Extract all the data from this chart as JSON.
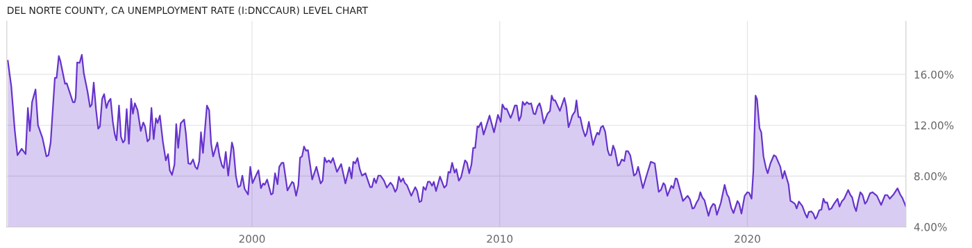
{
  "chart_data": {
    "type": "area",
    "title": "DEL NORTE COUNTY, CA UNEMPLOYMENT RATE (I:DNCCAUR) LEVEL CHART",
    "xlim": [
      1990.1,
      2026.4
    ],
    "xticks": [
      2000,
      2010,
      2020
    ],
    "ylim": [
      4,
      20.2
    ],
    "yticks": [
      {
        "value": 4,
        "label": "4.00%"
      },
      {
        "value": 8,
        "label": "8.00%"
      },
      {
        "value": 12,
        "label": "12.00%"
      },
      {
        "value": 16,
        "label": "16.00%"
      }
    ],
    "grid": true,
    "legend": false,
    "marker": "none",
    "line_style": "solid",
    "series": [
      {
        "color": "#6633cc",
        "x": [
          1990.14,
          1990.28,
          1990.42,
          1990.53,
          1990.7,
          1990.86,
          1990.95,
          1991.03,
          1991.12,
          1991.26,
          1991.36,
          1991.54,
          1991.7,
          1991.78,
          1991.87,
          1992.04,
          1992.11,
          1992.2,
          1992.26,
          1992.45,
          1992.52,
          1992.77,
          1992.84,
          1992.88,
          1992.94,
          1993.04,
          1993.13,
          1993.21,
          1993.36,
          1993.46,
          1993.53,
          1993.61,
          1993.7,
          1993.79,
          1993.86,
          1993.95,
          1994.03,
          1994.12,
          1994.2,
          1994.29,
          1994.38,
          1994.46,
          1994.53,
          1994.63,
          1994.71,
          1994.79,
          1994.86,
          1994.94,
          1995.03,
          1995.12,
          1995.19,
          1995.27,
          1995.38,
          1995.51,
          1995.61,
          1995.68,
          1995.78,
          1995.86,
          1995.94,
          1996.03,
          1996.12,
          1996.19,
          1996.28,
          1996.4,
          1996.52,
          1996.61,
          1996.68,
          1996.77,
          1996.87,
          1996.94,
          1997.02,
          1997.12,
          1997.26,
          1997.33,
          1997.43,
          1997.52,
          1997.62,
          1997.71,
          1997.79,
          1997.87,
          1997.94,
          1998.02,
          1998.18,
          1998.27,
          1998.35,
          1998.43,
          1998.6,
          1998.69,
          1998.79,
          1998.86,
          1998.94,
          1999.04,
          1999.19,
          1999.25,
          1999.35,
          1999.44,
          1999.53,
          1999.61,
          1999.7,
          1999.84,
          1999.93,
          2000.02,
          2000.17,
          2000.26,
          2000.36,
          2000.45,
          2000.51,
          2000.61,
          2000.77,
          2000.84,
          2000.93,
          2001.03,
          2001.1,
          2001.2,
          2001.27,
          2001.43,
          2001.62,
          2001.68,
          2001.78,
          2001.87,
          2001.94,
          2002.02,
          2002.1,
          2002.18,
          2002.26,
          2002.43,
          2002.6,
          2002.77,
          2002.85,
          2002.93,
          2003.01,
          2003.1,
          2003.18,
          2003.27,
          2003.43,
          2003.6,
          2003.77,
          2003.93,
          2004.02,
          2004.09,
          2004.17,
          2004.26,
          2004.35,
          2004.44,
          2004.58,
          2004.77,
          2004.84,
          2004.93,
          2005.01,
          2005.1,
          2005.19,
          2005.33,
          2005.44,
          2005.59,
          2005.68,
          2005.78,
          2005.85,
          2005.93,
          2006.01,
          2006.1,
          2006.17,
          2006.26,
          2006.43,
          2006.59,
          2006.67,
          2006.76,
          2006.84,
          2006.92,
          2007.01,
          2007.1,
          2007.18,
          2007.27,
          2007.34,
          2007.43,
          2007.59,
          2007.76,
          2007.85,
          2007.93,
          2008.0,
          2008.08,
          2008.18,
          2008.25,
          2008.35,
          2008.44,
          2008.6,
          2008.68,
          2008.77,
          2008.86,
          2008.93,
          2009.01,
          2009.1,
          2009.15,
          2009.25,
          2009.35,
          2009.44,
          2009.59,
          2009.77,
          2009.93,
          2010.04,
          2010.11,
          2010.21,
          2010.28,
          2010.44,
          2010.51,
          2010.61,
          2010.69,
          2010.78,
          2010.86,
          2010.93,
          2011.01,
          2011.1,
          2011.19,
          2011.27,
          2011.37,
          2011.44,
          2011.53,
          2011.61,
          2011.68,
          2011.78,
          2011.93,
          2012.03,
          2012.1,
          2012.17,
          2012.24,
          2012.43,
          2012.61,
          2012.69,
          2012.78,
          2012.87,
          2012.93,
          2013.04,
          2013.1,
          2013.18,
          2013.25,
          2013.35,
          2013.45,
          2013.51,
          2013.6,
          2013.77,
          2013.87,
          2013.94,
          2014.01,
          2014.09,
          2014.17,
          2014.26,
          2014.36,
          2014.43,
          2014.5,
          2014.58,
          2014.65,
          2014.77,
          2014.83,
          2014.93,
          2015.03,
          2015.1,
          2015.18,
          2015.27,
          2015.35,
          2015.42,
          2015.51,
          2015.59,
          2015.78,
          2015.95,
          2016.1,
          2016.26,
          2016.42,
          2016.51,
          2016.61,
          2016.67,
          2016.77,
          2016.93,
          2017.01,
          2017.1,
          2017.16,
          2017.4,
          2017.59,
          2017.68,
          2017.78,
          2017.85,
          2017.96,
          2018.03,
          2018.1,
          2018.18,
          2018.27,
          2018.43,
          2018.52,
          2018.62,
          2018.69,
          2018.77,
          2018.93,
          2019.08,
          2019.18,
          2019.25,
          2019.35,
          2019.44,
          2019.6,
          2019.67,
          2019.76,
          2019.89,
          2020.0,
          2020.07,
          2020.17,
          2020.24,
          2020.33,
          2020.39,
          2020.49,
          2020.56,
          2020.65,
          2020.75,
          2020.82,
          2020.93,
          2021.07,
          2021.15,
          2021.33,
          2021.42,
          2021.5,
          2021.66,
          2021.74,
          2021.82,
          2021.92,
          2021.99,
          2022.08,
          2022.22,
          2022.34,
          2022.41,
          2022.48,
          2022.58,
          2022.66,
          2022.74,
          2022.8,
          2022.9,
          2022.99,
          2023.07,
          2023.14,
          2023.22,
          2023.3,
          2023.39,
          2023.5,
          2023.64,
          2023.72,
          2023.81,
          2023.91,
          2024.07,
          2024.16,
          2024.23,
          2024.32,
          2024.39,
          2024.47,
          2024.56,
          2024.65,
          2024.75,
          2024.82,
          2024.95,
          2025.05,
          2025.23,
          2025.4,
          2025.56,
          2025.65,
          2025.75,
          2025.91,
          2026.06,
          2026.17,
          2026.26,
          2026.4
        ],
        "values": [
          17.09,
          15.09,
          11.64,
          9.64,
          10.15,
          9.73,
          13.36,
          11.55,
          13.82,
          14.82,
          12.0,
          11.0,
          9.55,
          9.64,
          10.64,
          15.73,
          15.73,
          17.45,
          17.09,
          15.27,
          15.31,
          13.82,
          13.82,
          14.18,
          16.95,
          16.91,
          17.55,
          16.09,
          14.64,
          13.45,
          13.64,
          15.36,
          13.27,
          11.73,
          11.91,
          14.09,
          14.45,
          13.36,
          13.85,
          14.09,
          12.27,
          11.27,
          10.82,
          13.55,
          11.09,
          10.64,
          10.82,
          13.27,
          10.55,
          14.09,
          12.91,
          13.73,
          13.18,
          11.55,
          12.22,
          11.91,
          10.73,
          10.91,
          13.36,
          10.91,
          12.55,
          12.18,
          12.76,
          10.73,
          9.24,
          9.73,
          8.45,
          8.09,
          8.91,
          12.09,
          10.22,
          12.15,
          12.45,
          11.36,
          9.0,
          8.95,
          9.31,
          8.73,
          8.55,
          9.18,
          11.45,
          9.82,
          13.55,
          13.18,
          10.55,
          9.55,
          10.64,
          9.55,
          8.82,
          8.64,
          9.91,
          8.04,
          10.64,
          10.18,
          8.0,
          7.13,
          7.24,
          8.04,
          7.0,
          6.55,
          8.73,
          7.45,
          8.09,
          8.45,
          7.05,
          7.42,
          7.31,
          7.73,
          6.55,
          6.64,
          8.22,
          7.36,
          8.73,
          9.05,
          9.05,
          6.87,
          7.55,
          7.45,
          6.45,
          7.27,
          9.45,
          9.55,
          10.33,
          10.0,
          10.04,
          7.73,
          8.73,
          7.42,
          7.64,
          9.45,
          9.09,
          9.24,
          9.05,
          9.42,
          8.33,
          8.95,
          7.42,
          8.69,
          7.82,
          9.13,
          9.0,
          9.42,
          8.55,
          8.04,
          8.22,
          7.13,
          7.13,
          7.82,
          7.45,
          8.04,
          8.04,
          7.64,
          7.09,
          7.49,
          7.27,
          6.76,
          7.0,
          7.95,
          7.55,
          7.82,
          7.45,
          7.27,
          6.45,
          7.13,
          6.82,
          5.96,
          6.04,
          7.15,
          6.91,
          7.55,
          7.55,
          7.24,
          7.55,
          6.82,
          7.96,
          7.09,
          7.27,
          8.33,
          8.27,
          9.05,
          8.27,
          8.55,
          7.64,
          7.91,
          9.24,
          9.05,
          8.22,
          8.91,
          10.22,
          10.22,
          11.91,
          11.85,
          12.22,
          11.27,
          11.82,
          12.76,
          11.45,
          12.82,
          12.27,
          13.64,
          13.27,
          13.31,
          12.58,
          12.91,
          13.55,
          13.55,
          12.36,
          12.73,
          13.85,
          13.6,
          13.82,
          13.67,
          13.73,
          12.91,
          12.87,
          13.49,
          13.73,
          13.27,
          12.15,
          12.91,
          13.13,
          14.33,
          13.96,
          13.96,
          13.13,
          14.15,
          13.45,
          11.85,
          12.36,
          12.76,
          13.09,
          13.96,
          12.64,
          12.64,
          11.73,
          11.13,
          11.36,
          12.27,
          10.45,
          11.09,
          11.42,
          11.27,
          11.85,
          11.96,
          11.49,
          10.04,
          9.64,
          9.64,
          10.4,
          10.04,
          8.82,
          8.87,
          9.31,
          9.18,
          9.96,
          9.96,
          9.64,
          8.82,
          8.04,
          8.18,
          8.73,
          7.05,
          8.18,
          9.13,
          9.0,
          6.76,
          6.91,
          7.45,
          7.31,
          6.45,
          7.24,
          7.05,
          7.82,
          7.78,
          6.04,
          6.45,
          6.18,
          5.45,
          5.49,
          5.96,
          6.18,
          6.73,
          6.33,
          6.09,
          4.87,
          5.49,
          5.82,
          5.73,
          4.95,
          5.91,
          7.31,
          6.55,
          6.33,
          5.49,
          5.09,
          6.04,
          5.82,
          5.05,
          6.45,
          6.73,
          6.69,
          6.22,
          8.36,
          14.33,
          14.04,
          11.78,
          11.45,
          9.55,
          8.64,
          8.22,
          9.0,
          9.64,
          9.55,
          8.73,
          7.82,
          8.4,
          7.36,
          6.04,
          5.96,
          5.82,
          5.45,
          6.0,
          5.64,
          5.0,
          4.73,
          5.18,
          5.22,
          5.05,
          4.64,
          4.78,
          5.31,
          5.36,
          6.22,
          5.91,
          5.93,
          5.36,
          5.45,
          5.82,
          6.22,
          5.6,
          6.0,
          6.22,
          6.91,
          6.51,
          6.33,
          5.6,
          5.24,
          6.0,
          6.73,
          6.51,
          5.82,
          6.0,
          6.64,
          6.73,
          6.45,
          5.73,
          6.51,
          6.51,
          6.22,
          6.58,
          7.04,
          6.55,
          6.27,
          5.6
        ]
      }
    ]
  }
}
